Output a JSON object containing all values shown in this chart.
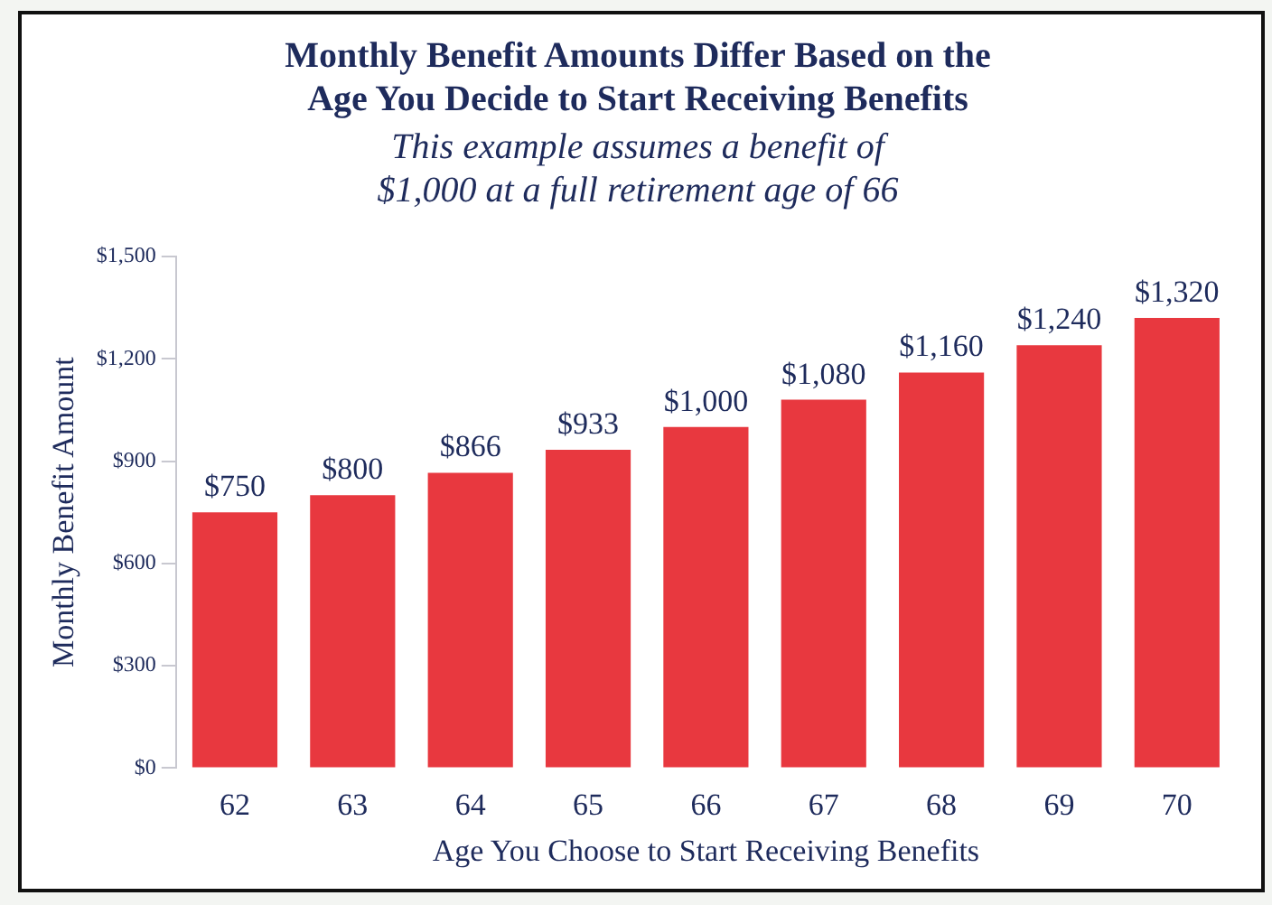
{
  "chart_data": {
    "type": "bar",
    "title": [
      "Monthly Benefit Amounts Differ Based on the",
      "Age You Decide to Start Receiving Benefits"
    ],
    "subtitle": [
      "This example assumes a benefit of",
      "$1,000 at a full retirement age of 66"
    ],
    "xlabel": "Age You Choose to Start Receiving Benefits",
    "ylabel": "Monthly Benefit Amount",
    "categories": [
      "62",
      "63",
      "64",
      "65",
      "66",
      "67",
      "68",
      "69",
      "70"
    ],
    "values": [
      750,
      800,
      866,
      933,
      1000,
      1080,
      1160,
      1240,
      1320
    ],
    "value_labels": [
      "$750",
      "$800",
      "$866",
      "$933",
      "$1,000",
      "$1,080",
      "$1,160",
      "$1,240",
      "$1,320"
    ],
    "color": "#e8383f",
    "ylim": [
      0,
      1500
    ],
    "yticks": [
      {
        "value": 0,
        "label": "$0"
      },
      {
        "value": 300,
        "label": "$300"
      },
      {
        "value": 600,
        "label": "$600"
      },
      {
        "value": 900,
        "label": "$900"
      },
      {
        "value": 1200,
        "label": "$1,200"
      },
      {
        "value": 1500,
        "label": "$1,500"
      }
    ],
    "grid": false,
    "legend": false
  }
}
